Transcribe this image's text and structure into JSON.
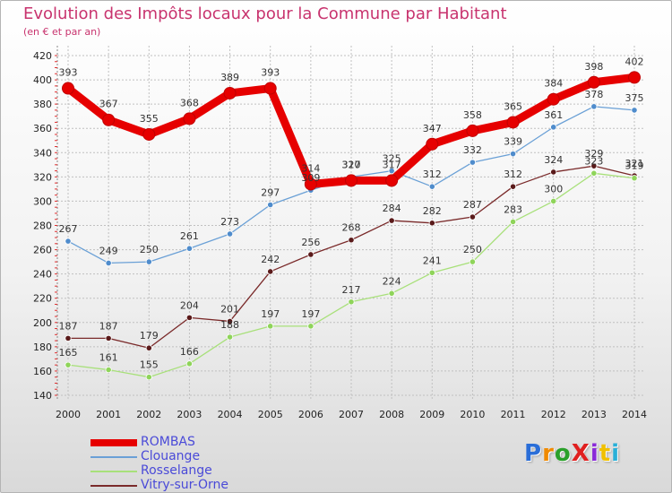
{
  "title": "Evolution des Impôts locaux pour la Commune par Habitant",
  "subtitle": "(en € et par an)",
  "logo": "ProXiti",
  "colors": {
    "title": "#c8336e",
    "rombas": "#e60000",
    "clouange": "#6aa0d6",
    "rosselange": "#a8e07a",
    "vitry": "#7a2a2a",
    "grid": "#c0c0c0",
    "axis_ticks": "#e03030"
  },
  "chart_data": {
    "type": "line",
    "title": "Evolution des Impôts locaux pour la Commune par Habitant",
    "subtitle": "(en € et par an)",
    "xlabel": "",
    "ylabel": "",
    "ylim": [
      140,
      420
    ],
    "yticks": [
      140,
      160,
      180,
      200,
      220,
      240,
      260,
      280,
      300,
      320,
      340,
      360,
      380,
      400,
      420
    ],
    "grid": true,
    "legend_position": "bottom-left",
    "x": [
      "2000",
      "2001",
      "2002",
      "2003",
      "2004",
      "2005",
      "2006",
      "2007",
      "2008",
      "2009",
      "2010",
      "2011",
      "2012",
      "2013",
      "2014"
    ],
    "series": [
      {
        "name": "ROMBAS",
        "values": [
          393,
          367,
          355,
          368,
          389,
          393,
          314,
          317,
          317,
          347,
          358,
          365,
          384,
          398,
          402
        ],
        "labels": [
          "393",
          "367",
          "355",
          "368",
          "389",
          "393",
          "314",
          "317",
          "317",
          "347",
          "358",
          "365",
          "384",
          "398",
          "402"
        ]
      },
      {
        "name": "Clouange",
        "values": [
          267,
          249,
          250,
          261,
          273,
          297,
          309,
          320,
          325,
          312,
          332,
          339,
          361,
          378,
          375
        ],
        "labels": [
          "267",
          "249",
          "250",
          "261",
          "273",
          "297",
          "309",
          "320",
          "325",
          "312",
          "332",
          "339",
          "361",
          "378",
          "375"
        ]
      },
      {
        "name": "Rosselange",
        "values": [
          165,
          161,
          155,
          166,
          188,
          197,
          197,
          217,
          224,
          241,
          250,
          283,
          300,
          323,
          319
        ],
        "labels": [
          "165",
          "161",
          "155",
          "166",
          "188",
          "197",
          "197",
          "217",
          "224",
          "241",
          "250",
          "283",
          "300",
          "323",
          "319"
        ]
      },
      {
        "name": "Vitry-sur-Orne",
        "values": [
          187,
          187,
          179,
          204,
          201,
          242,
          256,
          268,
          284,
          282,
          287,
          312,
          324,
          329,
          321
        ],
        "labels": [
          "187",
          "187",
          "179",
          "204",
          "201",
          "242",
          "256",
          "268",
          "284",
          "282",
          "287",
          "312",
          "324",
          "329",
          "321"
        ]
      }
    ]
  }
}
